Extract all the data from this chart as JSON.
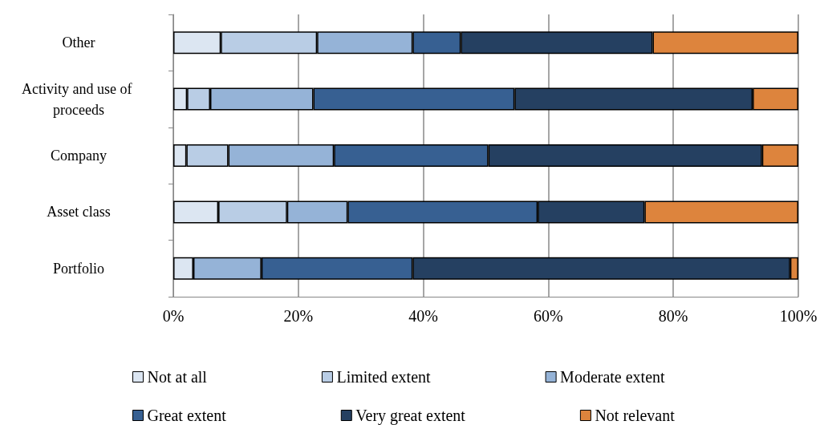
{
  "chart_data": {
    "type": "bar",
    "orientation": "horizontal",
    "stacked": true,
    "categories": [
      "Other",
      "Activity and use of proceeds",
      "Company",
      "Asset class",
      "Portfolio"
    ],
    "series": [
      {
        "name": "Not at all",
        "color": "#dce6f2",
        "values": [
          7.6,
          2.2,
          2.1,
          7.2,
          3.2
        ]
      },
      {
        "name": "Limited extent",
        "color": "#b9cde5",
        "values": [
          15.4,
          3.7,
          6.7,
          11.0,
          0
        ]
      },
      {
        "name": "Moderate extent",
        "color": "#95b3d7",
        "values": [
          15.3,
          16.5,
          16.9,
          9.7,
          10.9
        ]
      },
      {
        "name": "Great extent",
        "color": "#376092",
        "values": [
          7.7,
          32.2,
          24.7,
          30.4,
          24.2
        ]
      },
      {
        "name": "Very great extent",
        "color": "#254061",
        "values": [
          30.7,
          38.1,
          43.8,
          17.1,
          60.4
        ]
      },
      {
        "name": "Not relevant",
        "color": "#dd843d",
        "values": [
          23.3,
          7.3,
          5.8,
          24.6,
          1.3
        ]
      }
    ],
    "xlim": [
      0,
      100
    ],
    "xticks": [
      {
        "value": 0,
        "label": "0%"
      },
      {
        "value": 20,
        "label": "20%"
      },
      {
        "value": 40,
        "label": "40%"
      },
      {
        "value": 60,
        "label": "60%"
      },
      {
        "value": 80,
        "label": "80%"
      },
      {
        "value": 100,
        "label": "100%"
      }
    ],
    "grid": "x",
    "legend": "bottom"
  }
}
